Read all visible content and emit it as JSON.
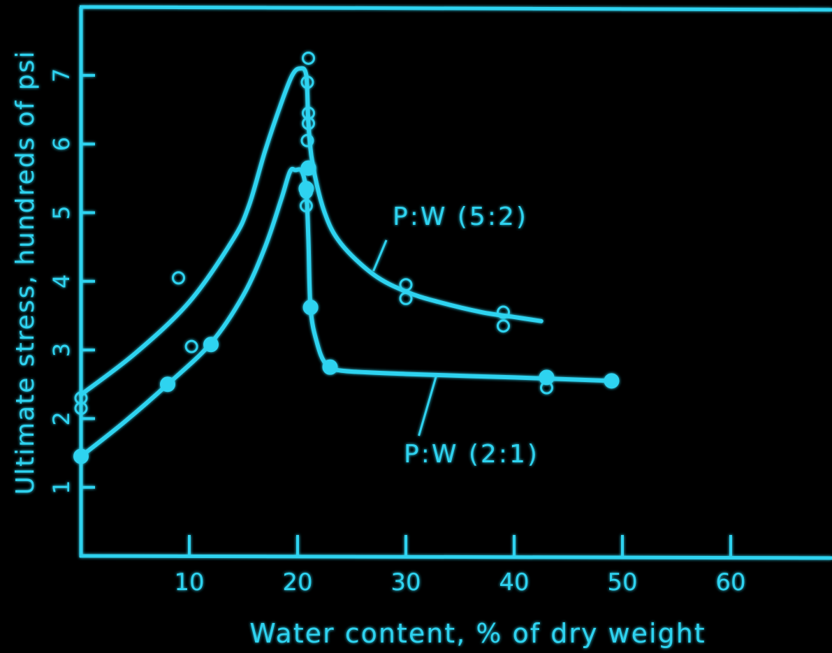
{
  "colors": {
    "background": "#000000",
    "foreground": "#2fd3f0",
    "glow": "#36e0ff"
  },
  "chart_data": {
    "type": "scatter",
    "xlabel": "Water content,  % of dry weight",
    "ylabel": "Ultimate stress, hundreds of psi",
    "xlim": [
      0,
      70
    ],
    "ylim": [
      0,
      8
    ],
    "x_ticks": [
      "10",
      "20",
      "30",
      "40",
      "50",
      "60"
    ],
    "y_ticks": [
      "1",
      "2",
      "3",
      "4",
      "5",
      "6",
      "7"
    ],
    "grid": false,
    "series": [
      {
        "name": "P:W (5:2)",
        "marker": "open-circle",
        "points": [
          [
            0,
            2.3
          ],
          [
            0,
            2.15
          ],
          [
            9,
            4.05
          ],
          [
            10.2,
            3.05
          ],
          [
            21,
            7.25
          ],
          [
            20.9,
            6.9
          ],
          [
            21,
            6.45
          ],
          [
            21,
            6.3
          ],
          [
            20.9,
            6.05
          ],
          [
            20.9,
            5.65
          ],
          [
            20.8,
            5.3
          ],
          [
            20.8,
            5.1
          ],
          [
            30,
            3.95
          ],
          [
            30,
            3.75
          ],
          [
            39,
            3.55
          ],
          [
            39,
            3.35
          ],
          [
            43,
            2.45
          ]
        ],
        "curve": [
          [
            0,
            2.35
          ],
          [
            5,
            2.95
          ],
          [
            10,
            3.7
          ],
          [
            14,
            4.6
          ],
          [
            15.5,
            5.1
          ],
          [
            17,
            5.9
          ],
          [
            18.5,
            6.6
          ],
          [
            19.5,
            7.0
          ],
          [
            20.2,
            7.1
          ],
          [
            20.8,
            7.0
          ],
          [
            21,
            6.3
          ],
          [
            21.4,
            5.7
          ],
          [
            22.5,
            5.0
          ],
          [
            24,
            4.55
          ],
          [
            27,
            4.1
          ],
          [
            30,
            3.85
          ],
          [
            33,
            3.7
          ],
          [
            37,
            3.55
          ],
          [
            40,
            3.48
          ],
          [
            42.5,
            3.42
          ]
        ]
      },
      {
        "name": "P:W (2:1)",
        "marker": "filled-circle",
        "points": [
          [
            0,
            1.45
          ],
          [
            8,
            2.5
          ],
          [
            12,
            3.08
          ],
          [
            21,
            5.65
          ],
          [
            20.8,
            5.35
          ],
          [
            21.2,
            3.62
          ],
          [
            23,
            2.75
          ],
          [
            43,
            2.6
          ],
          [
            49,
            2.55
          ]
        ],
        "curve": [
          [
            0,
            1.45
          ],
          [
            4,
            1.95
          ],
          [
            8,
            2.5
          ],
          [
            12,
            3.1
          ],
          [
            15,
            3.8
          ],
          [
            17,
            4.5
          ],
          [
            18.5,
            5.2
          ],
          [
            19.3,
            5.6
          ],
          [
            19.8,
            5.62
          ],
          [
            20.4,
            5.6
          ],
          [
            20.8,
            5.3
          ],
          [
            21,
            4.6
          ],
          [
            21.2,
            3.6
          ],
          [
            21.8,
            3.1
          ],
          [
            22.6,
            2.8
          ],
          [
            24,
            2.7
          ],
          [
            30,
            2.65
          ],
          [
            40,
            2.6
          ],
          [
            49,
            2.55
          ]
        ]
      }
    ],
    "annotations": [
      "P:W (5:2)",
      "P:W (2:1)"
    ]
  }
}
